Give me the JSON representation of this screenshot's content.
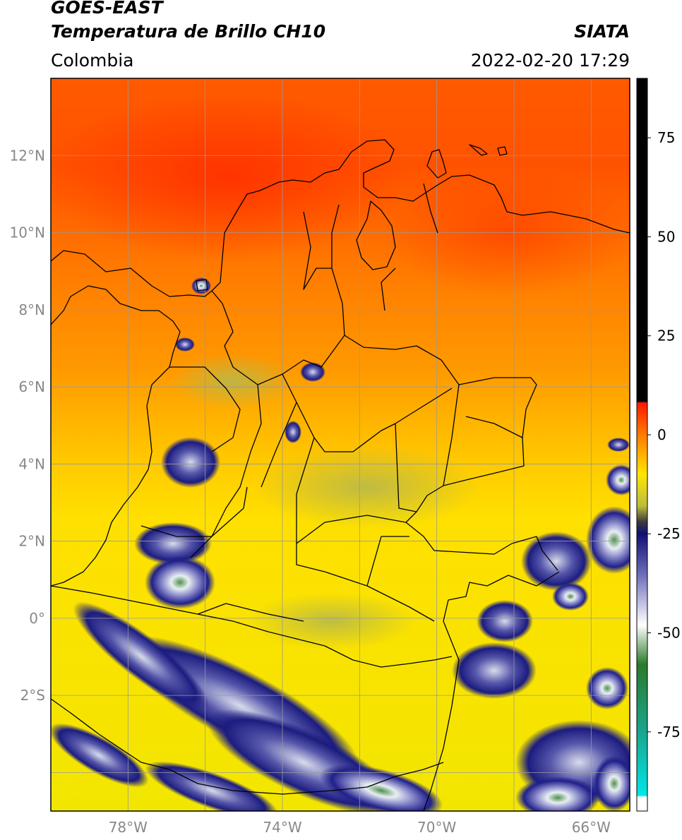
{
  "header": {
    "satellite": "GOES-EAST",
    "product": "Temperatura de Brillo CH10",
    "region": "Colombia",
    "brand": "SIATA",
    "timestamp": "2022-02-20 17:29"
  },
  "map": {
    "lon_range": [
      -80,
      -65
    ],
    "lat_range": [
      -5,
      14
    ],
    "lat_labels": [
      "12°N",
      "10°N",
      "8°N",
      "6°N",
      "4°N",
      "2°N",
      "0°",
      "2°S"
    ],
    "lat_values": [
      12,
      10,
      8,
      6,
      4,
      2,
      0,
      -2
    ],
    "lon_labels": [
      "78°W",
      "74°W",
      "70°W",
      "66°W"
    ],
    "lon_values": [
      -78,
      -74,
      -70,
      -66
    ],
    "grid_lons": [
      -78,
      -76,
      -74,
      -72,
      -70,
      -68,
      -66
    ],
    "grid_lats": [
      12,
      10,
      8,
      6,
      4,
      2,
      0,
      -2,
      -4
    ],
    "colors": {
      "warm_red": "#ff4a00",
      "orange": "#ff8a00",
      "yellow": "#ffe600",
      "olive": "#bfbf40",
      "navy": "#1a1a7a",
      "cloud_white": "#e8ecf4",
      "cloud_green": "#4a8a4a",
      "border": "#000000",
      "grid": "#999999"
    }
  },
  "colorbar": {
    "range": [
      -95,
      90
    ],
    "ticks": [
      75,
      50,
      25,
      0,
      -25,
      -50,
      -75
    ],
    "tick_labels": [
      "75",
      "50",
      "25",
      "0",
      "-25",
      "-50",
      "-75"
    ],
    "stops": [
      {
        "value": 90,
        "color": "#000000"
      },
      {
        "value": 8.5,
        "color": "#000000"
      },
      {
        "value": 8,
        "color": "#ff1a00"
      },
      {
        "value": 0,
        "color": "#ff7a00"
      },
      {
        "value": -10,
        "color": "#ffe600"
      },
      {
        "value": -18,
        "color": "#bcbc3c"
      },
      {
        "value": -22,
        "color": "#3a3a3a"
      },
      {
        "value": -25,
        "color": "#101075"
      },
      {
        "value": -35,
        "color": "#6a6ab8"
      },
      {
        "value": -48,
        "color": "#ffffff"
      },
      {
        "value": -58,
        "color": "#2a7a2a"
      },
      {
        "value": -75,
        "color": "#1aa58f"
      },
      {
        "value": -91,
        "color": "#00e6e6"
      },
      {
        "value": -91.5,
        "color": "#ffffff"
      },
      {
        "value": -95,
        "color": "#ffffff"
      }
    ]
  }
}
